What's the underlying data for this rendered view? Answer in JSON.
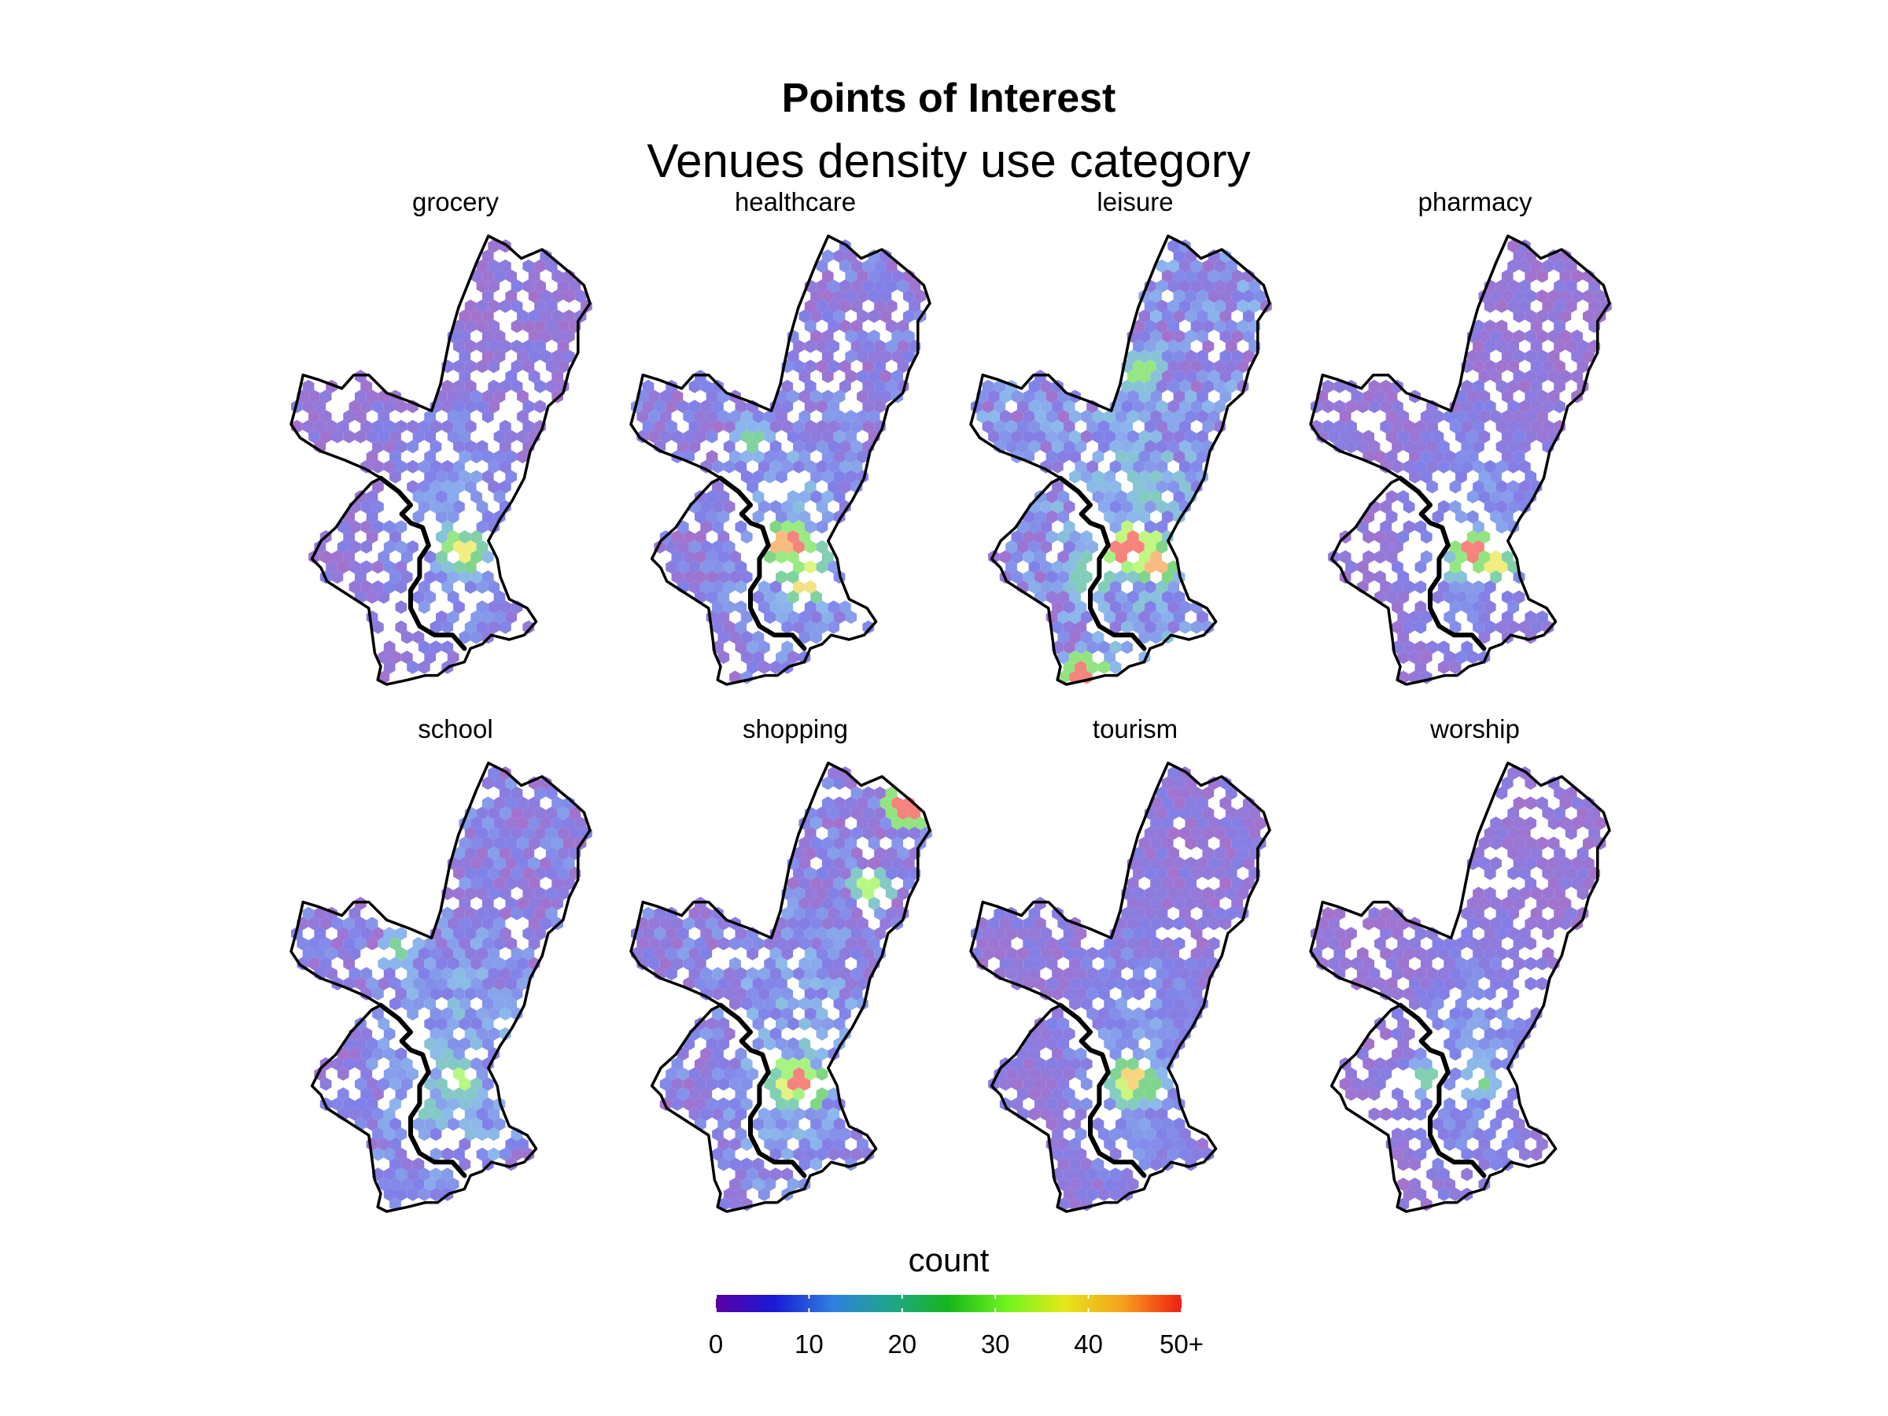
{
  "chart_data": {
    "type": "heatmap",
    "subtype": "hexbin facet map",
    "title": "Points of Interest",
    "subtitle": "Venues density use category",
    "facets": [
      {
        "name": "grocery",
        "hotspots": [
          {
            "cell": [
              0.57,
              0.7
            ],
            "value": 38
          },
          {
            "cell": [
              0.53,
              0.69
            ],
            "value": 28
          },
          {
            "cell": [
              0.6,
              0.72
            ],
            "value": 24
          }
        ]
      },
      {
        "name": "healthcare",
        "hotspots": [
          {
            "cell": [
              0.56,
              0.69
            ],
            "value": 52
          },
          {
            "cell": [
              0.51,
              0.69
            ],
            "value": 45
          },
          {
            "cell": [
              0.6,
              0.72
            ],
            "value": 36
          },
          {
            "cell": [
              0.57,
              0.78
            ],
            "value": 40
          },
          {
            "cell": [
              0.4,
              0.45
            ],
            "value": 22
          }
        ]
      },
      {
        "name": "leisure",
        "hotspots": [
          {
            "cell": [
              0.56,
              0.69
            ],
            "value": 60
          },
          {
            "cell": [
              0.5,
              0.7
            ],
            "value": 55
          },
          {
            "cell": [
              0.62,
              0.72
            ],
            "value": 45
          },
          {
            "cell": [
              0.42,
              0.75
            ],
            "value": 35
          },
          {
            "cell": [
              0.57,
              0.3
            ],
            "value": 28
          },
          {
            "cell": [
              0.38,
              0.98
            ],
            "value": 50
          }
        ]
      },
      {
        "name": "pharmacy",
        "hotspots": [
          {
            "cell": [
              0.55,
              0.7
            ],
            "value": 50
          },
          {
            "cell": [
              0.62,
              0.72
            ],
            "value": 38
          },
          {
            "cell": [
              0.5,
              0.72
            ],
            "value": 28
          }
        ]
      },
      {
        "name": "school",
        "hotspots": [
          {
            "cell": [
              0.56,
              0.7
            ],
            "value": 32
          },
          {
            "cell": [
              0.45,
              0.78
            ],
            "value": 18
          },
          {
            "cell": [
              0.36,
              0.42
            ],
            "value": 22
          }
        ]
      },
      {
        "name": "shopping",
        "hotspots": [
          {
            "cell": [
              0.56,
              0.7
            ],
            "value": 55
          },
          {
            "cell": [
              0.6,
              0.72
            ],
            "value": 45
          },
          {
            "cell": [
              0.52,
              0.73
            ],
            "value": 36
          },
          {
            "cell": [
              0.92,
              0.1
            ],
            "value": 50
          },
          {
            "cell": [
              0.8,
              0.28
            ],
            "value": 32
          }
        ]
      },
      {
        "name": "tourism",
        "hotspots": [
          {
            "cell": [
              0.55,
              0.7
            ],
            "value": 42
          },
          {
            "cell": [
              0.51,
              0.72
            ],
            "value": 34
          },
          {
            "cell": [
              0.6,
              0.72
            ],
            "value": 24
          }
        ]
      },
      {
        "name": "worship",
        "hotspots": [
          {
            "cell": [
              0.56,
              0.7
            ],
            "value": 24
          },
          {
            "cell": [
              0.38,
              0.7
            ],
            "value": 20
          }
        ]
      }
    ],
    "legend": {
      "title": "count",
      "ticks": [
        {
          "value": 0,
          "label": "0"
        },
        {
          "value": 10,
          "label": "10"
        },
        {
          "value": 20,
          "label": "20"
        },
        {
          "value": 30,
          "label": "30"
        },
        {
          "value": 40,
          "label": "40"
        },
        {
          "value": 50,
          "label": "50+"
        }
      ],
      "range": [
        0,
        50
      ],
      "placement": "bottom",
      "colors": [
        "#5a00a3",
        "#1a1ad6",
        "#2f7fdf",
        "#1ea58a",
        "#17b61c",
        "#6ef51d",
        "#e6e619",
        "#f5a01d",
        "#f01e14"
      ]
    },
    "tile_opacity": 0.55,
    "grid": false,
    "axes": "none"
  }
}
